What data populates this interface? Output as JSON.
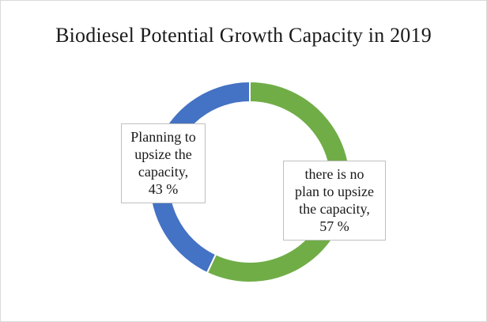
{
  "chart_data": {
    "type": "pie",
    "style": "donut",
    "title": "Biodiesel Potential Growth Capacity in 2019",
    "slices": [
      {
        "label": "there is no plan to upsize the capacity,",
        "value": 57,
        "value_text": "57 %",
        "color": "#70ad47"
      },
      {
        "label": "Planning to upsize the capacity,",
        "value": 43,
        "value_text": "43 %",
        "color": "#4472c4"
      }
    ],
    "legend": "none",
    "data_labels": "callout boxes"
  },
  "labels": {
    "left_lines": "Planning to\nupsize the\ncapacity,\n43 %",
    "right_lines": "there is no\nplan to upsize\nthe capacity,\n57 %"
  }
}
